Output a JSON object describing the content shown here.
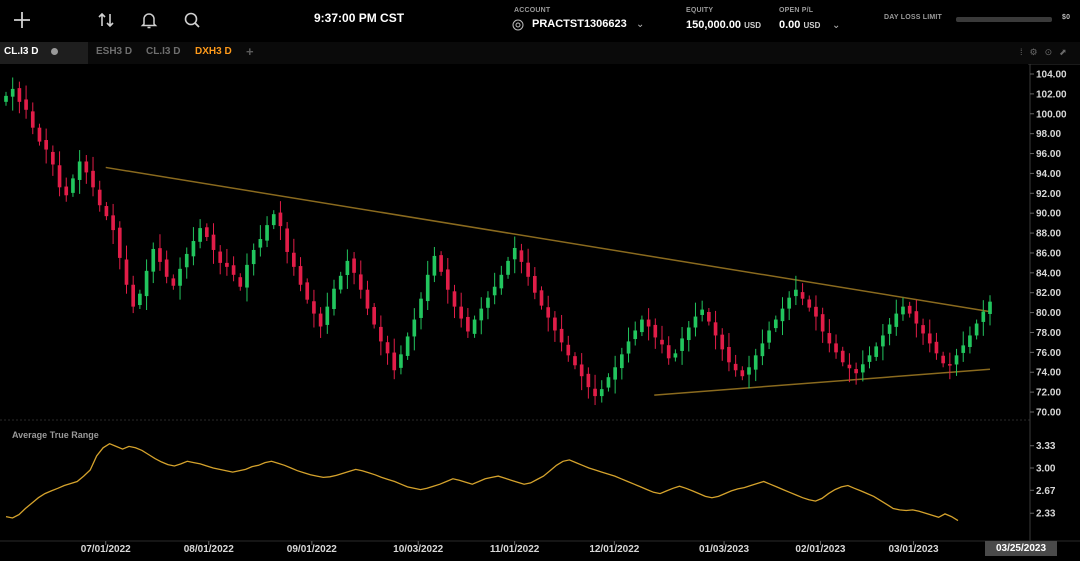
{
  "topbar": {
    "time": "9:37:00 PM CST",
    "account": {
      "label": "ACCOUNT",
      "value": "PRACTST1306623"
    },
    "equity": {
      "label": "EQUITY",
      "value": "150,000.00",
      "unit": "USD"
    },
    "open_pl": {
      "label": "OPEN P/L",
      "value": "0.00",
      "unit": "USD"
    },
    "day_loss_limit": {
      "label": "DAY LOSS LIMIT",
      "value": "$0"
    },
    "icons": [
      "plus-icon",
      "sort-arrows-icon",
      "bell-icon",
      "search-icon"
    ]
  },
  "tabs": [
    {
      "label": "CL.I3 D",
      "active": true
    },
    {
      "label": "ESH3 D",
      "active": false
    },
    {
      "label": "CL.I3 D",
      "active": false
    },
    {
      "label": "DXH3 D",
      "active": false,
      "color": "#ff9a1a"
    }
  ],
  "chart_data": [
    {
      "type": "candlestick",
      "symbol": "CL.I3 D",
      "ylim": [
        70,
        104
      ],
      "y_ticks": [
        "104.00",
        "102.00",
        "100.00",
        "98.00",
        "96.00",
        "94.00",
        "92.00",
        "90.00",
        "88.00",
        "86.00",
        "84.00",
        "82.00",
        "80.00",
        "78.00",
        "76.00",
        "74.00",
        "72.00",
        "70.00"
      ],
      "x_ticks": [
        "07/01/2022",
        "08/01/2022",
        "09/01/2022",
        "10/03/2022",
        "11/01/2022",
        "12/01/2022",
        "01/03/2023",
        "02/01/2023",
        "03/01/2023"
      ],
      "x_range": [
        "2022-06-01",
        "2023-03-24"
      ],
      "closes": [
        101.8,
        102.5,
        101.2,
        100.4,
        98.6,
        97.2,
        96.4,
        94.9,
        92.6,
        91.8,
        93.5,
        95.2,
        94.1,
        92.6,
        90.8,
        89.7,
        88.3,
        85.5,
        82.8,
        80.6,
        81.9,
        84.2,
        86.4,
        85.1,
        83.6,
        82.7,
        84.4,
        85.9,
        87.2,
        88.5,
        87.6,
        86.3,
        85.0,
        84.6,
        83.8,
        82.6,
        84.8,
        86.3,
        87.4,
        88.8,
        89.9,
        88.7,
        86.1,
        84.6,
        82.8,
        81.3,
        79.9,
        78.6,
        80.6,
        82.4,
        83.7,
        85.2,
        84.0,
        82.3,
        80.4,
        78.8,
        77.1,
        75.9,
        74.2,
        75.8,
        77.6,
        79.3,
        81.4,
        83.8,
        85.7,
        84.1,
        82.3,
        80.6,
        79.4,
        78.1,
        79.3,
        80.4,
        81.5,
        82.6,
        83.8,
        85.2,
        86.5,
        85.1,
        83.6,
        82.0,
        80.7,
        79.5,
        78.2,
        77.0,
        75.7,
        74.7,
        73.6,
        72.5,
        71.6,
        72.3,
        73.5,
        74.5,
        75.8,
        77.1,
        78.2,
        79.3,
        78.6,
        77.5,
        76.8,
        75.4,
        75.9,
        77.4,
        78.5,
        79.6,
        80.3,
        79.1,
        77.7,
        76.3,
        75.0,
        74.2,
        73.6,
        74.5,
        75.7,
        76.9,
        78.2,
        79.3,
        80.4,
        81.5,
        82.3,
        81.4,
        80.5,
        79.6,
        78.1,
        76.9,
        76.0,
        75.0,
        74.4,
        73.9,
        74.8,
        75.7,
        76.6,
        77.7,
        78.8,
        79.9,
        80.6,
        79.9,
        78.9,
        77.9,
        76.9,
        75.9,
        74.9,
        74.7,
        75.7,
        76.7,
        77.7,
        78.9,
        80.1,
        81.1
      ],
      "trendlines": [
        {
          "from": {
            "date": "2022-07-01",
            "price": 94.6
          },
          "to": {
            "date": "2023-03-24",
            "price": 80.1
          },
          "color": "#8a6a1e"
        },
        {
          "from": {
            "date": "2022-12-13",
            "price": 71.7
          },
          "to": {
            "date": "2023-03-24",
            "price": 74.3
          },
          "color": "#8a6a1e"
        }
      ],
      "candle_colors": {
        "up": "#22c55e",
        "down": "#e11d48"
      }
    },
    {
      "type": "line",
      "title": "Average True Range",
      "ylim": [
        2.2,
        3.4
      ],
      "y_ticks": [
        "3.33",
        "3.00",
        "2.67",
        "2.33"
      ],
      "color": "#d4a22c",
      "values": [
        2.28,
        2.26,
        2.31,
        2.4,
        2.48,
        2.56,
        2.62,
        2.66,
        2.7,
        2.74,
        2.77,
        2.8,
        2.88,
        2.97,
        3.18,
        3.3,
        3.36,
        3.32,
        3.28,
        3.32,
        3.3,
        3.26,
        3.2,
        3.14,
        3.09,
        3.05,
        3.03,
        3.06,
        3.1,
        3.08,
        3.06,
        3.03,
        3.0,
        2.98,
        2.96,
        2.94,
        2.96,
        2.98,
        3.02,
        3.04,
        3.08,
        3.1,
        3.07,
        3.04,
        3.0,
        2.96,
        2.93,
        2.9,
        2.88,
        2.86,
        2.87,
        2.89,
        2.92,
        2.95,
        2.98,
        2.96,
        2.93,
        2.9,
        2.86,
        2.83,
        2.8,
        2.76,
        2.72,
        2.7,
        2.68,
        2.7,
        2.73,
        2.76,
        2.8,
        2.84,
        2.82,
        2.79,
        2.76,
        2.8,
        2.84,
        2.86,
        2.88,
        2.85,
        2.82,
        2.79,
        2.76,
        2.78,
        2.83,
        2.88,
        2.96,
        3.04,
        3.1,
        3.12,
        3.08,
        3.04,
        3.0,
        2.97,
        2.94,
        2.91,
        2.88,
        2.84,
        2.8,
        2.76,
        2.72,
        2.68,
        2.64,
        2.62,
        2.66,
        2.7,
        2.73,
        2.7,
        2.66,
        2.62,
        2.58,
        2.56,
        2.58,
        2.62,
        2.66,
        2.69,
        2.71,
        2.74,
        2.77,
        2.8,
        2.76,
        2.72,
        2.68,
        2.64,
        2.6,
        2.56,
        2.53,
        2.51,
        2.55,
        2.62,
        2.68,
        2.72,
        2.74,
        2.7,
        2.66,
        2.62,
        2.58,
        2.52,
        2.46,
        2.4,
        2.38,
        2.37,
        2.38,
        2.36,
        2.33,
        2.3,
        2.27,
        2.32,
        2.28,
        2.22
      ]
    }
  ],
  "status": {
    "date_badge": "03/25/2023"
  }
}
